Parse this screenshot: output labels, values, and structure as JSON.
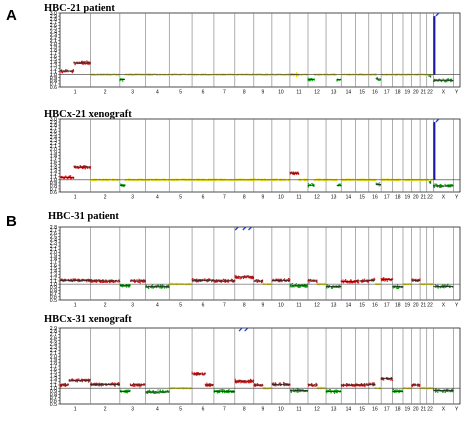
{
  "figure": {
    "panel_labels": [
      "A",
      "B"
    ]
  },
  "chart_data": [
    {
      "type": "scatter",
      "panel": "A",
      "title": "HBC-21 patient",
      "y_ticks": [
        "3.0",
        "2.9",
        "2.8",
        "2.7",
        "2.6",
        "2.5",
        "2.4",
        "2.3",
        "2.2",
        "2.1",
        "2.0",
        "1.9",
        "1.8",
        "1.7",
        "1.6",
        "1.5",
        "1.4",
        "1.3",
        "1.2",
        "1.1",
        "1.0",
        "0.9",
        "0.8",
        "0.7",
        "0.6"
      ],
      "ylim": [
        0.6,
        3.0
      ],
      "chromosomes": [
        "1",
        "2",
        "3",
        "4",
        "5",
        "6",
        "7",
        "8",
        "9",
        "10",
        "11",
        "12",
        "13",
        "14",
        "15",
        "16",
        "17",
        "18",
        "19",
        "20",
        "21",
        "22",
        "X",
        "Y"
      ],
      "baseline": 1.0,
      "segments": [
        {
          "chr": "1",
          "start": 0.0,
          "end": 0.45,
          "value": 1.12,
          "color": "#d01818"
        },
        {
          "chr": "1",
          "start": 0.45,
          "end": 1.0,
          "value": 1.38,
          "color": "#d01818"
        },
        {
          "chr": "3",
          "start": 0.0,
          "end": 0.2,
          "value": 0.84,
          "color": "#10a010"
        },
        {
          "chr": "11",
          "start": 0.0,
          "end": 0.5,
          "value": 1.0,
          "color": "#e8d800"
        },
        {
          "chr": "12",
          "start": 0.0,
          "end": 0.35,
          "value": 0.84,
          "color": "#10a010"
        },
        {
          "chr": "13",
          "start": 0.7,
          "end": 1.0,
          "value": 0.84,
          "color": "#10a010"
        },
        {
          "chr": "16",
          "start": 0.6,
          "end": 1.0,
          "value": 0.86,
          "color": "#10a010"
        },
        {
          "chr": "22",
          "start": 0.3,
          "end": 0.6,
          "value": 0.95,
          "color": "#10a010"
        },
        {
          "chr": "X",
          "start": 0.0,
          "end": 1.0,
          "value": 0.82,
          "color": "#10a010"
        }
      ],
      "spikes": [
        {
          "chr": "X",
          "pos": 0.05,
          "from": 1.0,
          "to": 2.9,
          "color": "#1a1aa0"
        }
      ],
      "outliers": [
        {
          "chr": "X",
          "pos": 0.2,
          "value": 3.0,
          "color": "#2040e0"
        }
      ]
    },
    {
      "type": "scatter",
      "panel": "A",
      "title": "HBCx-21 xenograft",
      "y_ticks": [
        "3.0",
        "2.9",
        "2.8",
        "2.7",
        "2.6",
        "2.5",
        "2.4",
        "2.3",
        "2.2",
        "2.1",
        "2.0",
        "1.9",
        "1.8",
        "1.7",
        "1.6",
        "1.5",
        "1.4",
        "1.3",
        "1.2",
        "1.1",
        "1.0",
        "0.9",
        "0.8",
        "0.7",
        "0.6"
      ],
      "ylim": [
        0.6,
        3.0
      ],
      "chromosomes": [
        "1",
        "2",
        "3",
        "4",
        "5",
        "6",
        "7",
        "8",
        "9",
        "10",
        "11",
        "12",
        "13",
        "14",
        "15",
        "16",
        "17",
        "18",
        "19",
        "20",
        "21",
        "22",
        "X",
        "Y"
      ],
      "baseline": 1.0,
      "segments": [
        {
          "chr": "1",
          "start": 0.0,
          "end": 0.45,
          "value": 1.08,
          "color": "#d01818"
        },
        {
          "chr": "1",
          "start": 0.45,
          "end": 1.0,
          "value": 1.42,
          "color": "#d01818"
        },
        {
          "chr": "3",
          "start": 0.0,
          "end": 0.2,
          "value": 0.82,
          "color": "#10a010"
        },
        {
          "chr": "11",
          "start": 0.0,
          "end": 0.5,
          "value": 1.22,
          "color": "#d01818"
        },
        {
          "chr": "12",
          "start": 0.0,
          "end": 0.35,
          "value": 0.82,
          "color": "#10a010"
        },
        {
          "chr": "13",
          "start": 0.7,
          "end": 1.0,
          "value": 0.82,
          "color": "#10a010"
        },
        {
          "chr": "16",
          "start": 0.6,
          "end": 1.0,
          "value": 0.85,
          "color": "#10a010"
        },
        {
          "chr": "22",
          "start": 0.3,
          "end": 0.6,
          "value": 0.93,
          "color": "#10a010"
        },
        {
          "chr": "X",
          "start": 0.0,
          "end": 1.0,
          "value": 0.8,
          "color": "#10a010"
        }
      ],
      "spikes": [
        {
          "chr": "X",
          "pos": 0.05,
          "from": 1.0,
          "to": 2.9,
          "color": "#1a1aa0"
        }
      ],
      "outliers": [
        {
          "chr": "X",
          "pos": 0.2,
          "value": 3.0,
          "color": "#2040e0"
        }
      ]
    },
    {
      "type": "scatter",
      "panel": "B",
      "title": "HBC-31 patient",
      "y_ticks": [
        "2.8",
        "2.7",
        "2.6",
        "2.5",
        "2.4",
        "2.3",
        "2.2",
        "2.1",
        "2.0",
        "1.9",
        "1.8",
        "1.7",
        "1.6",
        "1.5",
        "1.4",
        "1.3",
        "1.2",
        "1.1",
        "1.0",
        "0.9",
        "0.8",
        "0.7",
        "0.6",
        "0.5"
      ],
      "ylim": [
        0.5,
        2.8
      ],
      "chromosomes": [
        "1",
        "2",
        "3",
        "4",
        "5",
        "6",
        "7",
        "8",
        "9",
        "10",
        "11",
        "12",
        "13",
        "14",
        "15",
        "16",
        "17",
        "18",
        "19",
        "20",
        "21",
        "22",
        "X",
        "Y"
      ],
      "baseline": 1.0,
      "segments": [
        {
          "chr": "1",
          "start": 0.0,
          "end": 1.0,
          "value": 1.12,
          "color": "#d01818"
        },
        {
          "chr": "2",
          "start": 0.0,
          "end": 1.0,
          "value": 1.1,
          "color": "#d01818"
        },
        {
          "chr": "3",
          "start": 0.0,
          "end": 0.4,
          "value": 0.95,
          "color": "#10a010"
        },
        {
          "chr": "3",
          "start": 0.4,
          "end": 1.0,
          "value": 1.1,
          "color": "#d01818"
        },
        {
          "chr": "4",
          "start": 0.0,
          "end": 1.0,
          "value": 0.92,
          "color": "#10a010"
        },
        {
          "chr": "6",
          "start": 0.0,
          "end": 1.0,
          "value": 1.12,
          "color": "#d01818"
        },
        {
          "chr": "7",
          "start": 0.0,
          "end": 1.0,
          "value": 1.1,
          "color": "#d01818"
        },
        {
          "chr": "8",
          "start": 0.0,
          "end": 1.0,
          "value": 1.22,
          "color": "#d01818"
        },
        {
          "chr": "9",
          "start": 0.0,
          "end": 0.5,
          "value": 1.1,
          "color": "#d01818"
        },
        {
          "chr": "10",
          "start": 0.0,
          "end": 1.0,
          "value": 1.12,
          "color": "#d01818"
        },
        {
          "chr": "11",
          "start": 0.0,
          "end": 1.0,
          "value": 0.95,
          "color": "#10a010"
        },
        {
          "chr": "12",
          "start": 0.0,
          "end": 0.5,
          "value": 1.1,
          "color": "#d01818"
        },
        {
          "chr": "13",
          "start": 0.0,
          "end": 1.0,
          "value": 0.92,
          "color": "#10a010"
        },
        {
          "chr": "14",
          "start": 0.0,
          "end": 1.0,
          "value": 1.08,
          "color": "#d01818"
        },
        {
          "chr": "15",
          "start": 0.0,
          "end": 1.0,
          "value": 1.1,
          "color": "#d01818"
        },
        {
          "chr": "16",
          "start": 0.0,
          "end": 0.5,
          "value": 1.12,
          "color": "#d01818"
        },
        {
          "chr": "17",
          "start": 0.0,
          "end": 1.0,
          "value": 1.15,
          "color": "#d01818"
        },
        {
          "chr": "18",
          "start": 0.0,
          "end": 1.0,
          "value": 0.92,
          "color": "#10a010"
        },
        {
          "chr": "20",
          "start": 0.0,
          "end": 1.0,
          "value": 1.12,
          "color": "#d01818"
        },
        {
          "chr": "X",
          "start": 0.0,
          "end": 1.0,
          "value": 0.93,
          "color": "#10a010"
        }
      ],
      "spikes": [],
      "outliers": [
        {
          "chr": "8",
          "pos": 0.1,
          "value": 2.78,
          "color": "#2040e0"
        },
        {
          "chr": "8",
          "pos": 0.5,
          "value": 2.78,
          "color": "#2040e0"
        },
        {
          "chr": "8",
          "pos": 0.8,
          "value": 2.78,
          "color": "#2040e0"
        }
      ]
    },
    {
      "type": "scatter",
      "panel": "B",
      "title": "HBCx-31 xenograft",
      "y_ticks": [
        "2.9",
        "2.8",
        "2.7",
        "2.6",
        "2.5",
        "2.4",
        "2.3",
        "2.2",
        "2.1",
        "2.0",
        "1.9",
        "1.8",
        "1.7",
        "1.6",
        "1.5",
        "1.4",
        "1.3",
        "1.2",
        "1.1",
        "1.0",
        "0.9",
        "0.8",
        "0.7",
        "0.6",
        "0.5"
      ],
      "ylim": [
        0.5,
        2.9
      ],
      "chromosomes": [
        "1",
        "2",
        "3",
        "4",
        "5",
        "6",
        "7",
        "8",
        "9",
        "10",
        "11",
        "12",
        "13",
        "14",
        "15",
        "16",
        "17",
        "18",
        "19",
        "20",
        "21",
        "22",
        "X",
        "Y"
      ],
      "baseline": 1.0,
      "segments": [
        {
          "chr": "1",
          "start": 0.0,
          "end": 0.3,
          "value": 1.1,
          "color": "#d01818"
        },
        {
          "chr": "1",
          "start": 0.3,
          "end": 1.0,
          "value": 1.25,
          "color": "#d01818"
        },
        {
          "chr": "2",
          "start": 0.0,
          "end": 1.0,
          "value": 1.12,
          "color": "#d01818"
        },
        {
          "chr": "3",
          "start": 0.0,
          "end": 0.4,
          "value": 0.9,
          "color": "#10a010"
        },
        {
          "chr": "3",
          "start": 0.4,
          "end": 1.0,
          "value": 1.1,
          "color": "#d01818"
        },
        {
          "chr": "4",
          "start": 0.0,
          "end": 1.0,
          "value": 0.88,
          "color": "#10a010"
        },
        {
          "chr": "6",
          "start": 0.0,
          "end": 0.6,
          "value": 1.45,
          "color": "#d01818"
        },
        {
          "chr": "6",
          "start": 0.6,
          "end": 1.0,
          "value": 1.1,
          "color": "#d01818"
        },
        {
          "chr": "7",
          "start": 0.0,
          "end": 1.0,
          "value": 0.9,
          "color": "#10a010"
        },
        {
          "chr": "8",
          "start": 0.0,
          "end": 1.0,
          "value": 1.22,
          "color": "#d01818"
        },
        {
          "chr": "9",
          "start": 0.0,
          "end": 0.5,
          "value": 1.1,
          "color": "#d01818"
        },
        {
          "chr": "10",
          "start": 0.0,
          "end": 1.0,
          "value": 1.12,
          "color": "#d01818"
        },
        {
          "chr": "11",
          "start": 0.0,
          "end": 1.0,
          "value": 0.92,
          "color": "#10a010"
        },
        {
          "chr": "12",
          "start": 0.0,
          "end": 0.5,
          "value": 1.1,
          "color": "#d01818"
        },
        {
          "chr": "13",
          "start": 0.0,
          "end": 1.0,
          "value": 0.9,
          "color": "#10a010"
        },
        {
          "chr": "14",
          "start": 0.0,
          "end": 1.0,
          "value": 1.1,
          "color": "#d01818"
        },
        {
          "chr": "15",
          "start": 0.0,
          "end": 1.0,
          "value": 1.1,
          "color": "#d01818"
        },
        {
          "chr": "16",
          "start": 0.0,
          "end": 0.5,
          "value": 1.12,
          "color": "#d01818"
        },
        {
          "chr": "17",
          "start": 0.0,
          "end": 1.0,
          "value": 1.3,
          "color": "#d01818"
        },
        {
          "chr": "18",
          "start": 0.0,
          "end": 1.0,
          "value": 0.9,
          "color": "#10a010"
        },
        {
          "chr": "20",
          "start": 0.0,
          "end": 1.0,
          "value": 1.1,
          "color": "#d01818"
        },
        {
          "chr": "X",
          "start": 0.0,
          "end": 1.0,
          "value": 0.92,
          "color": "#10a010"
        }
      ],
      "spikes": [],
      "outliers": [
        {
          "chr": "8",
          "pos": 0.3,
          "value": 2.85,
          "color": "#2040e0"
        },
        {
          "chr": "8",
          "pos": 0.6,
          "value": 2.85,
          "color": "#2040e0"
        }
      ]
    }
  ]
}
